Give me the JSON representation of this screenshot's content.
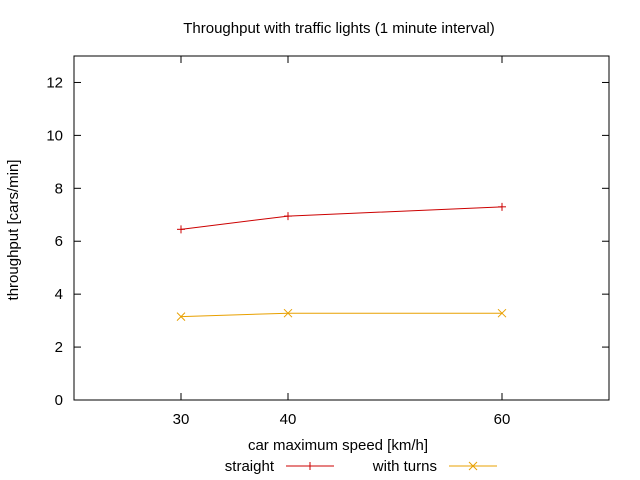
{
  "chart_data": {
    "type": "line",
    "title": "Throughput with traffic lights (1 minute interval)",
    "xlabel": "car maximum speed [km/h]",
    "ylabel": "throughput [cars/min]",
    "x": [
      30,
      40,
      60
    ],
    "xticks": [
      "30",
      "40",
      "60"
    ],
    "yticks": [
      "0",
      "2",
      "4",
      "6",
      "8",
      "10",
      "12"
    ],
    "ytick_values": [
      0,
      2,
      4,
      6,
      8,
      10,
      12
    ],
    "ylim": [
      0,
      13
    ],
    "grid": false,
    "legend_position": "bottom",
    "series": [
      {
        "name": "straight",
        "values": [
          6.45,
          6.95,
          7.3
        ],
        "color": "#cc0000",
        "marker": "plus"
      },
      {
        "name": "with turns",
        "values": [
          3.15,
          3.28,
          3.28
        ],
        "color": "#e8a000",
        "marker": "cross"
      }
    ]
  }
}
